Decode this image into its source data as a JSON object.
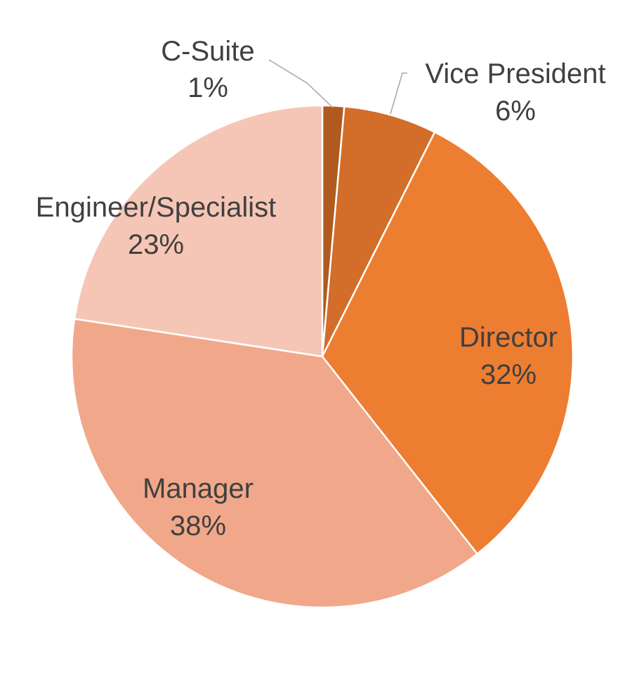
{
  "chart_data": {
    "type": "pie",
    "title": "",
    "categories": [
      "C-Suite",
      "Vice President",
      "Director",
      "Manager",
      "Engineer/Specialist"
    ],
    "values": [
      1.4,
      6,
      32,
      38,
      22.6
    ],
    "value_labels": [
      "1%",
      "6%",
      "32%",
      "38%",
      "23%"
    ],
    "colors": [
      "#b05a1f",
      "#d26d2a",
      "#ed7d31",
      "#f1a88a",
      "#f5c6b6"
    ],
    "start_angle_deg": 0,
    "direction": "clockwise",
    "legend": "none"
  }
}
